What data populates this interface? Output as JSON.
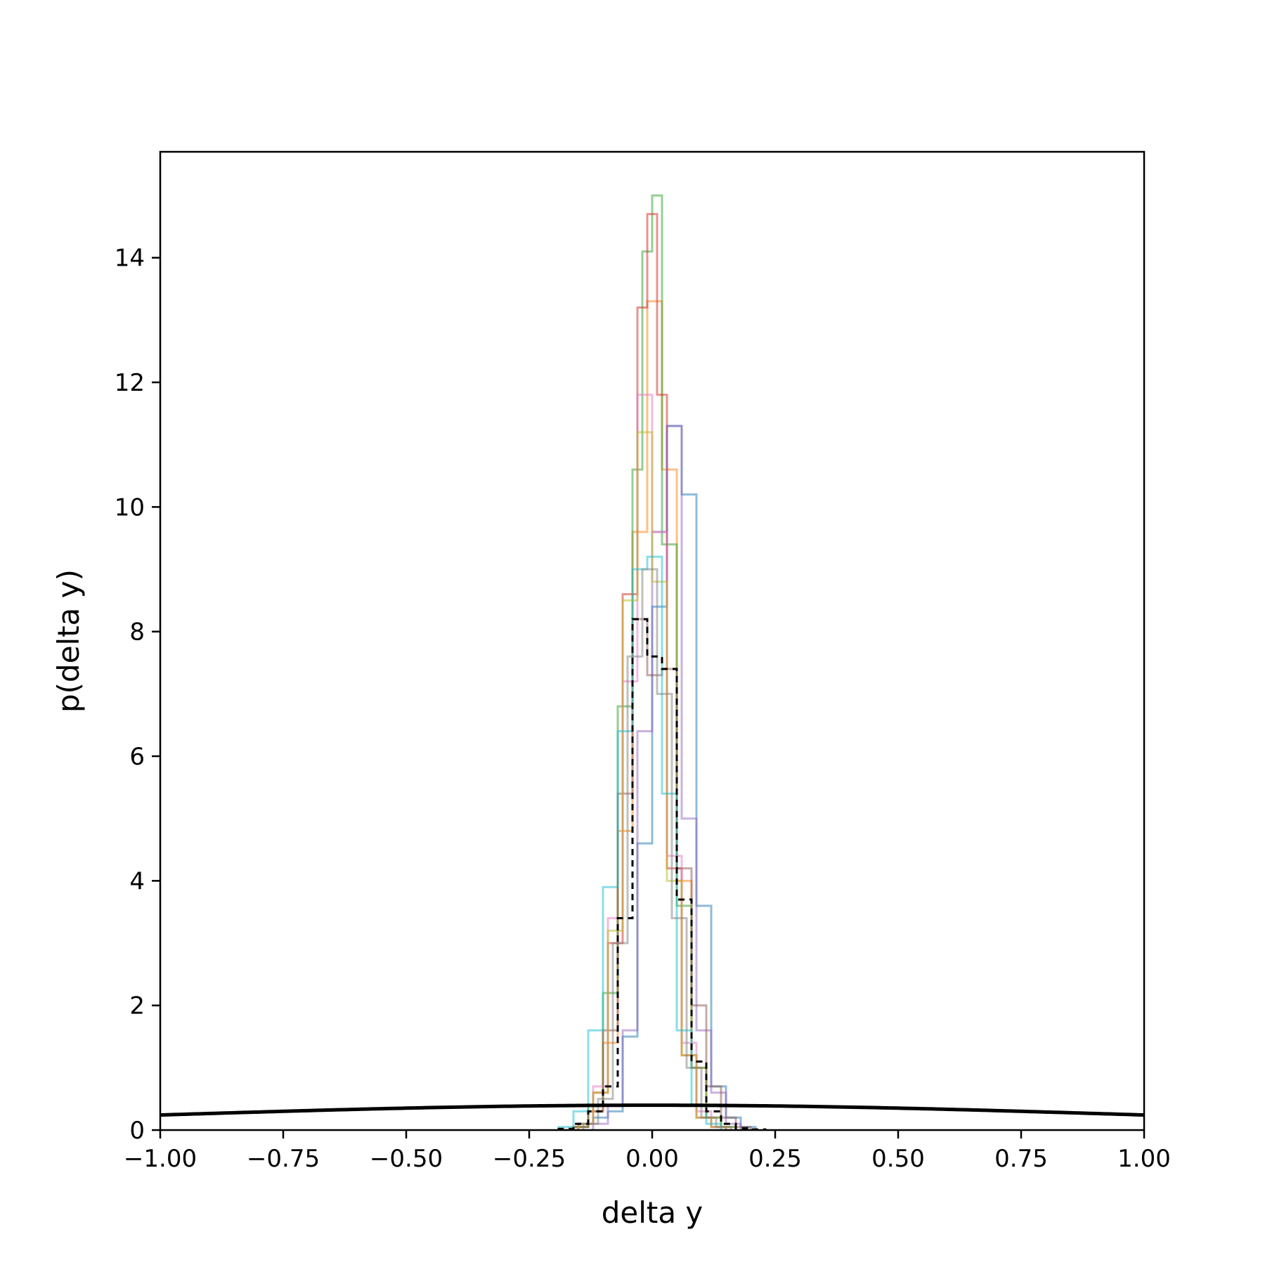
{
  "chart_data": {
    "type": "line",
    "title": "",
    "xlabel": "delta y",
    "ylabel": "p(delta y)",
    "xlim": [
      -1.0,
      1.0
    ],
    "ylim": [
      0,
      15.7
    ],
    "grid": false,
    "x_ticks": [
      -1.0,
      -0.75,
      -0.5,
      -0.25,
      0.0,
      0.25,
      0.5,
      0.75,
      1.0
    ],
    "x_tick_labels": [
      "−1.00",
      "−0.75",
      "−0.50",
      "−0.25",
      "0.00",
      "0.25",
      "0.50",
      "0.75",
      "1.00"
    ],
    "y_ticks": [
      0,
      2,
      4,
      6,
      8,
      10,
      12,
      14
    ],
    "y_tick_labels": [
      "0",
      "2",
      "4",
      "6",
      "8",
      "10",
      "12",
      "14"
    ],
    "prior_curve": {
      "kind": "normal",
      "mean": 0.0,
      "std": 1.0
    },
    "histograms": [
      {
        "color": "#1f77b4",
        "edges": [
          -0.18,
          -0.15,
          -0.12,
          -0.09,
          -0.06,
          -0.03,
          0.0,
          0.03,
          0.06,
          0.09,
          0.12,
          0.15,
          0.18,
          0.21
        ],
        "values": [
          0.0,
          0.1,
          0.2,
          0.3,
          1.5,
          4.6,
          8.4,
          11.3,
          10.2,
          3.6,
          0.7,
          0.2,
          0.05
        ]
      },
      {
        "color": "#ff7f0e",
        "edges": [
          -0.16,
          -0.13,
          -0.1,
          -0.07,
          -0.04,
          -0.01,
          0.02,
          0.05,
          0.08,
          0.11,
          0.14,
          0.17
        ],
        "values": [
          0.05,
          0.3,
          1.4,
          4.8,
          9.6,
          13.3,
          10.6,
          4.0,
          1.0,
          0.2,
          0.05
        ]
      },
      {
        "color": "#2ca02c",
        "edges": [
          -0.16,
          -0.13,
          -0.1,
          -0.07,
          -0.04,
          -0.02,
          0.0,
          0.02,
          0.05,
          0.08,
          0.11,
          0.14,
          0.17
        ],
        "values": [
          0.05,
          0.4,
          2.2,
          6.8,
          10.6,
          14.1,
          15.0,
          9.4,
          3.6,
          1.0,
          0.2,
          0.05
        ]
      },
      {
        "color": "#d62728",
        "edges": [
          -0.15,
          -0.12,
          -0.09,
          -0.06,
          -0.03,
          -0.01,
          0.01,
          0.03,
          0.06,
          0.09,
          0.12,
          0.15
        ],
        "values": [
          0.1,
          0.6,
          3.0,
          8.6,
          13.2,
          14.7,
          11.8,
          4.2,
          1.2,
          0.2,
          0.05
        ]
      },
      {
        "color": "#9467bd",
        "edges": [
          -0.12,
          -0.09,
          -0.06,
          -0.03,
          0.0,
          0.03,
          0.06,
          0.09,
          0.12,
          0.15,
          0.18
        ],
        "values": [
          0.1,
          0.4,
          1.6,
          6.4,
          9.6,
          11.3,
          5.0,
          1.6,
          0.6,
          0.1
        ]
      },
      {
        "color": "#8c564b",
        "edges": [
          -0.16,
          -0.13,
          -0.1,
          -0.07,
          -0.04,
          -0.01,
          0.02,
          0.05,
          0.08,
          0.11,
          0.14,
          0.17,
          0.2
        ],
        "values": [
          0.05,
          0.3,
          1.6,
          5.4,
          8.2,
          7.3,
          7.4,
          4.2,
          2.0,
          0.7,
          0.2,
          0.05
        ]
      },
      {
        "color": "#e377c2",
        "edges": [
          -0.15,
          -0.12,
          -0.09,
          -0.06,
          -0.03,
          0.0,
          0.03,
          0.06,
          0.09,
          0.12,
          0.15
        ],
        "values": [
          0.1,
          0.7,
          3.4,
          7.2,
          11.8,
          9.6,
          4.4,
          1.4,
          0.3,
          0.05
        ]
      },
      {
        "color": "#bcbd22",
        "edges": [
          -0.15,
          -0.12,
          -0.09,
          -0.06,
          -0.03,
          0.0,
          0.03,
          0.06,
          0.09,
          0.12,
          0.15
        ],
        "values": [
          0.1,
          0.6,
          3.2,
          8.5,
          11.2,
          8.8,
          4.0,
          1.2,
          0.2,
          0.05
        ]
      },
      {
        "color": "#17becf",
        "edges": [
          -0.19,
          -0.16,
          -0.13,
          -0.1,
          -0.07,
          -0.04,
          -0.01,
          0.02,
          0.05,
          0.08,
          0.11,
          0.14
        ],
        "values": [
          0.05,
          0.3,
          1.6,
          3.9,
          6.4,
          9.0,
          9.2,
          5.4,
          1.6,
          0.4,
          0.1
        ]
      },
      {
        "color": "#7f7f7f",
        "edges": [
          -0.14,
          -0.11,
          -0.08,
          -0.05,
          -0.02,
          0.01,
          0.04,
          0.07,
          0.1,
          0.13,
          0.16
        ],
        "values": [
          0.1,
          0.5,
          3.0,
          7.6,
          9.0,
          7.0,
          3.4,
          1.0,
          0.2,
          0.05
        ]
      }
    ],
    "combined_histogram": {
      "color": "#000000",
      "edges": [
        -0.19,
        -0.16,
        -0.13,
        -0.1,
        -0.07,
        -0.04,
        -0.01,
        0.02,
        0.05,
        0.08,
        0.11,
        0.14,
        0.17,
        0.2,
        0.23
      ],
      "values": [
        0.02,
        0.1,
        0.3,
        0.7,
        3.4,
        8.2,
        7.6,
        7.4,
        3.7,
        1.1,
        0.3,
        0.1,
        0.03,
        0.01
      ]
    }
  }
}
